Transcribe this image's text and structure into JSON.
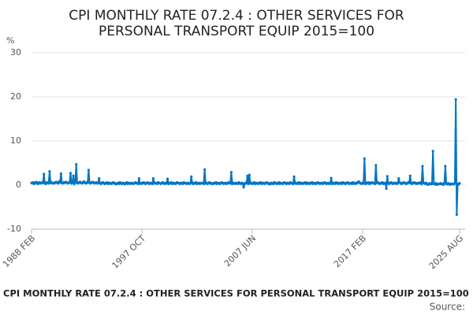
{
  "chart_data": {
    "type": "line",
    "title": [
      "CPI MONTHLY RATE 07.2.4 : OTHER SERVICES FOR",
      "PERSONAL TRANSPORT EQUIP 2015=100"
    ],
    "y_unit": "%",
    "source_label": "Source:",
    "ylim": [
      -10,
      30
    ],
    "yticks": [
      -10,
      0,
      10,
      20,
      30
    ],
    "grid": true,
    "categories": [
      "1988 FEB",
      null,
      null,
      null,
      null,
      null,
      null,
      null,
      null,
      null,
      null,
      null,
      null,
      null,
      null,
      null,
      null,
      null,
      null,
      null,
      null,
      null,
      null,
      null,
      null,
      null,
      null,
      null,
      null,
      null,
      null,
      null,
      null,
      null,
      null,
      null,
      null,
      null,
      null,
      null,
      null,
      null,
      null,
      null,
      null,
      null,
      null,
      null,
      null,
      null,
      null,
      null,
      null,
      null,
      null,
      null,
      null,
      null,
      null,
      null,
      null,
      null,
      null,
      null,
      null,
      null,
      null,
      null,
      null,
      null,
      null,
      null,
      null,
      null,
      null,
      null,
      null,
      null,
      null,
      null,
      null,
      null,
      null,
      null,
      null,
      null,
      null,
      null,
      null,
      null,
      null,
      null,
      null,
      null,
      null,
      null,
      null,
      null,
      null,
      null,
      null,
      null,
      null,
      null,
      null,
      null,
      null,
      null,
      null,
      null,
      null,
      null,
      null,
      null,
      null,
      null,
      "1997 OCT",
      null,
      null,
      null,
      null,
      null,
      null,
      null,
      null,
      null,
      null,
      null,
      null,
      null,
      null,
      null,
      null,
      null,
      null,
      null,
      null,
      null,
      null,
      null,
      null,
      null,
      null,
      null,
      null,
      null,
      null,
      null,
      null,
      null,
      null,
      null,
      null,
      null,
      null,
      null,
      null,
      null,
      null,
      null,
      null,
      null,
      null,
      null,
      null,
      null,
      null,
      null,
      null,
      null,
      null,
      null,
      null,
      null,
      null,
      null,
      null,
      null,
      null,
      null,
      null,
      null,
      null,
      null,
      null,
      null,
      null,
      null,
      null,
      null,
      null,
      null,
      null,
      null,
      null,
      null,
      null,
      null,
      null,
      null,
      null,
      null,
      null,
      null,
      null,
      null,
      null,
      null,
      null,
      null,
      null,
      null,
      null,
      null,
      null,
      null,
      null,
      null,
      null,
      null,
      null,
      null,
      null,
      null,
      null,
      null,
      null,
      null,
      null,
      null,
      null,
      null,
      "2007 JUN",
      null,
      null,
      null,
      null,
      null,
      null,
      null,
      null,
      null,
      null,
      null,
      null,
      null,
      null,
      null,
      null,
      null,
      null,
      null,
      null,
      null,
      null,
      null,
      null,
      null,
      null,
      null,
      null,
      null,
      null,
      null,
      null,
      null,
      null,
      null,
      null,
      null,
      null,
      null,
      null,
      null,
      null,
      null,
      null,
      null,
      null,
      null,
      null,
      null,
      null,
      null,
      null,
      null,
      null,
      null,
      null,
      null,
      null,
      null,
      null,
      null,
      null,
      null,
      null,
      null,
      null,
      null,
      null,
      null,
      null,
      null,
      null,
      null,
      null,
      null,
      null,
      null,
      null,
      null,
      null,
      null,
      null,
      null,
      null,
      null,
      null,
      null,
      null,
      null,
      null,
      null,
      null,
      null,
      null,
      null,
      null,
      null,
      null,
      null,
      null,
      null,
      null,
      null,
      null,
      null,
      null,
      null,
      null,
      null,
      null,
      null,
      null,
      null,
      null,
      null,
      "2017 FEB",
      null,
      null,
      null,
      null,
      null,
      null,
      null,
      null,
      null,
      null,
      null,
      null,
      null,
      null,
      null,
      null,
      null,
      null,
      null,
      null,
      null,
      null,
      null,
      null,
      null,
      null,
      null,
      null,
      null,
      null,
      null,
      null,
      null,
      null,
      null,
      null,
      null,
      null,
      null,
      null,
      null,
      null,
      null,
      null,
      null,
      null,
      null,
      null,
      null,
      null,
      null,
      null,
      null,
      null,
      null,
      null,
      null,
      null,
      null,
      null,
      null,
      null,
      null,
      null,
      null,
      null,
      null,
      null,
      null,
      null,
      null,
      null,
      null,
      null,
      null,
      null,
      null,
      null,
      null,
      null,
      null,
      null,
      null,
      null,
      null,
      null,
      null,
      null,
      null,
      null,
      null,
      null,
      null,
      null,
      null,
      null,
      null,
      null,
      null,
      null,
      null,
      "2025 AUG"
    ],
    "series": [
      {
        "name": "CPI MONTHLY RATE 07.2.4 : OTHER SERVICES FOR PERSONAL TRANSPORT EQUIP 2015=100",
        "color": "#0075c4",
        "values": [
          0.5,
          0.4,
          0.6,
          0.3,
          0.5,
          0.7,
          0.4,
          0.3,
          0.6,
          0.5,
          0.4,
          0.6,
          0.5,
          2.5,
          0.4,
          0.3,
          0.6,
          0.5,
          0.4,
          3.1,
          0.5,
          0.6,
          0.4,
          0.5,
          0.4,
          0.6,
          0.7,
          0.5,
          0.4,
          0.8,
          0.6,
          2.6,
          0.5,
          0.4,
          0.6,
          0.5,
          0.7,
          0.6,
          0.4,
          0.5,
          0.6,
          2.7,
          0.4,
          0.5,
          2.1,
          0.3,
          0.6,
          4.7,
          0.5,
          0.4,
          0.6,
          0.7,
          0.5,
          0.4,
          0.6,
          0.8,
          0.5,
          0.4,
          0.6,
          0.5,
          3.4,
          0.6,
          0.4,
          0.5,
          0.7,
          0.6,
          0.4,
          0.5,
          0.6,
          0.4,
          0.5,
          1.5,
          0.4,
          0.3,
          0.5,
          0.6,
          0.4,
          0.3,
          0.5,
          0.4,
          0.6,
          0.3,
          0.4,
          0.5,
          0.3,
          0.4,
          0.6,
          0.5,
          0.3,
          0.2,
          0.4,
          0.5,
          0.3,
          0.6,
          0.4,
          0.3,
          0.5,
          0.4,
          0.2,
          0.4,
          0.6,
          0.3,
          0.5,
          0.4,
          0.3,
          0.5,
          0.4,
          0.3,
          0.4,
          0.6,
          0.5,
          0.4,
          0.3,
          1.5,
          0.4,
          0.3,
          0.5,
          0.4,
          0.6,
          0.4,
          0.3,
          0.5,
          0.6,
          0.4,
          0.3,
          0.5,
          0.4,
          0.3,
          1.5,
          0.4,
          0.5,
          0.4,
          0.3,
          0.6,
          0.5,
          0.4,
          0.3,
          0.5,
          0.6,
          0.4,
          0.3,
          0.5,
          0.4,
          1.4,
          0.3,
          0.5,
          0.4,
          0.6,
          0.3,
          0.4,
          0.5,
          0.3,
          0.4,
          0.6,
          0.5,
          0.4,
          0.3,
          0.5,
          0.4,
          0.3,
          0.6,
          0.5,
          0.4,
          0.3,
          0.5,
          0.4,
          0.3,
          0.5,
          1.9,
          0.4,
          0.3,
          0.5,
          0.4,
          0.6,
          0.3,
          0.4,
          0.5,
          0.3,
          0.4,
          0.5,
          0.4,
          0.3,
          3.5,
          0.4,
          0.5,
          0.3,
          0.4,
          0.6,
          0.5,
          0.3,
          0.4,
          0.3,
          0.5,
          0.4,
          0.6,
          0.3,
          0.4,
          0.5,
          0.3,
          0.4,
          0.6,
          0.5,
          0.3,
          0.4,
          0.5,
          0.3,
          0.4,
          0.6,
          0.5,
          0.4,
          2.9,
          0.3,
          0.5,
          0.4,
          0.3,
          0.5,
          0.4,
          0.3,
          0.6,
          0.4,
          0.3,
          0.5,
          0.4,
          -0.5,
          0.3,
          0.5,
          0.4,
          2.1,
          0.3,
          2.3,
          0.4,
          0.5,
          0.3,
          0.4,
          0.6,
          0.3,
          0.5,
          0.4,
          0.3,
          0.5,
          0.4,
          0.6,
          0.3,
          0.4,
          0.5,
          0.3,
          0.4,
          0.6,
          0.5,
          0.3,
          0.4,
          0.2,
          0.5,
          0.4,
          0.3,
          0.6,
          0.4,
          0.5,
          0.3,
          0.4,
          0.6,
          0.3,
          0.5,
          0.4,
          0.3,
          0.5,
          0.6,
          0.4,
          0.3,
          0.5,
          0.4,
          0.3,
          0.6,
          0.5,
          0.4,
          0.3,
          1.9,
          0.4,
          0.5,
          0.3,
          0.4,
          0.6,
          0.3,
          0.5,
          0.4,
          0.3,
          0.5,
          0.4,
          0.6,
          0.3,
          0.5,
          0.4,
          0.3,
          0.5,
          0.4,
          0.6,
          0.3,
          0.4,
          0.5,
          0.3,
          0.4,
          0.6,
          0.5,
          0.3,
          0.4,
          0.5,
          0.3,
          0.4,
          0.6,
          0.5,
          0.3,
          0.4,
          0.5,
          0.3,
          0.4,
          1.6,
          0.3,
          0.5,
          0.4,
          0.3,
          0.6,
          0.4,
          0.5,
          0.3,
          0.4,
          0.5,
          0.3,
          0.6,
          0.4,
          0.5,
          0.3,
          0.4,
          0.6,
          0.5,
          0.3,
          0.4,
          0.5,
          0.3,
          0.6,
          0.4,
          0.3,
          0.5,
          0.4,
          0.6,
          0.8,
          0.5,
          0.4,
          0.3,
          0.5,
          0.4,
          6.0,
          0.3,
          0.5,
          0.4,
          0.6,
          0.3,
          0.5,
          0.4,
          0.6,
          0.5,
          0.4,
          0.3,
          4.5,
          0.5,
          0.6,
          0.4,
          0.3,
          0.5,
          0.4,
          0.6,
          0.3,
          0.4,
          0.5,
          -0.8,
          2.0,
          0.4,
          0.3,
          0.5,
          0.6,
          0.4,
          0.3,
          0.5,
          0.4,
          0.5,
          0.3,
          0.4,
          1.5,
          0.6,
          0.4,
          0.3,
          0.5,
          0.6,
          0.4,
          0.5,
          0.3,
          0.4,
          0.6,
          0.5,
          2.1,
          0.4,
          0.3,
          0.5,
          0.6,
          0.4,
          0.5,
          0.3,
          0.4,
          0.5,
          0.4,
          0.6,
          0.3,
          4.3,
          0.5,
          0.4,
          0.3,
          0.5,
          0.2,
          0.1,
          0.3,
          0.4,
          0.2,
          0.3,
          7.7,
          0.3,
          0.2,
          0.4,
          0.1,
          0.3,
          0.2,
          0.3,
          0.4,
          0.2,
          0.3,
          0.1,
          0.4,
          4.3,
          0.3,
          0.2,
          0.4,
          0.3,
          0.1,
          0.3,
          0.2,
          0.3,
          0.2,
          0.4,
          19.4,
          -6.7,
          0.3,
          0.2,
          0.4
        ]
      }
    ]
  }
}
